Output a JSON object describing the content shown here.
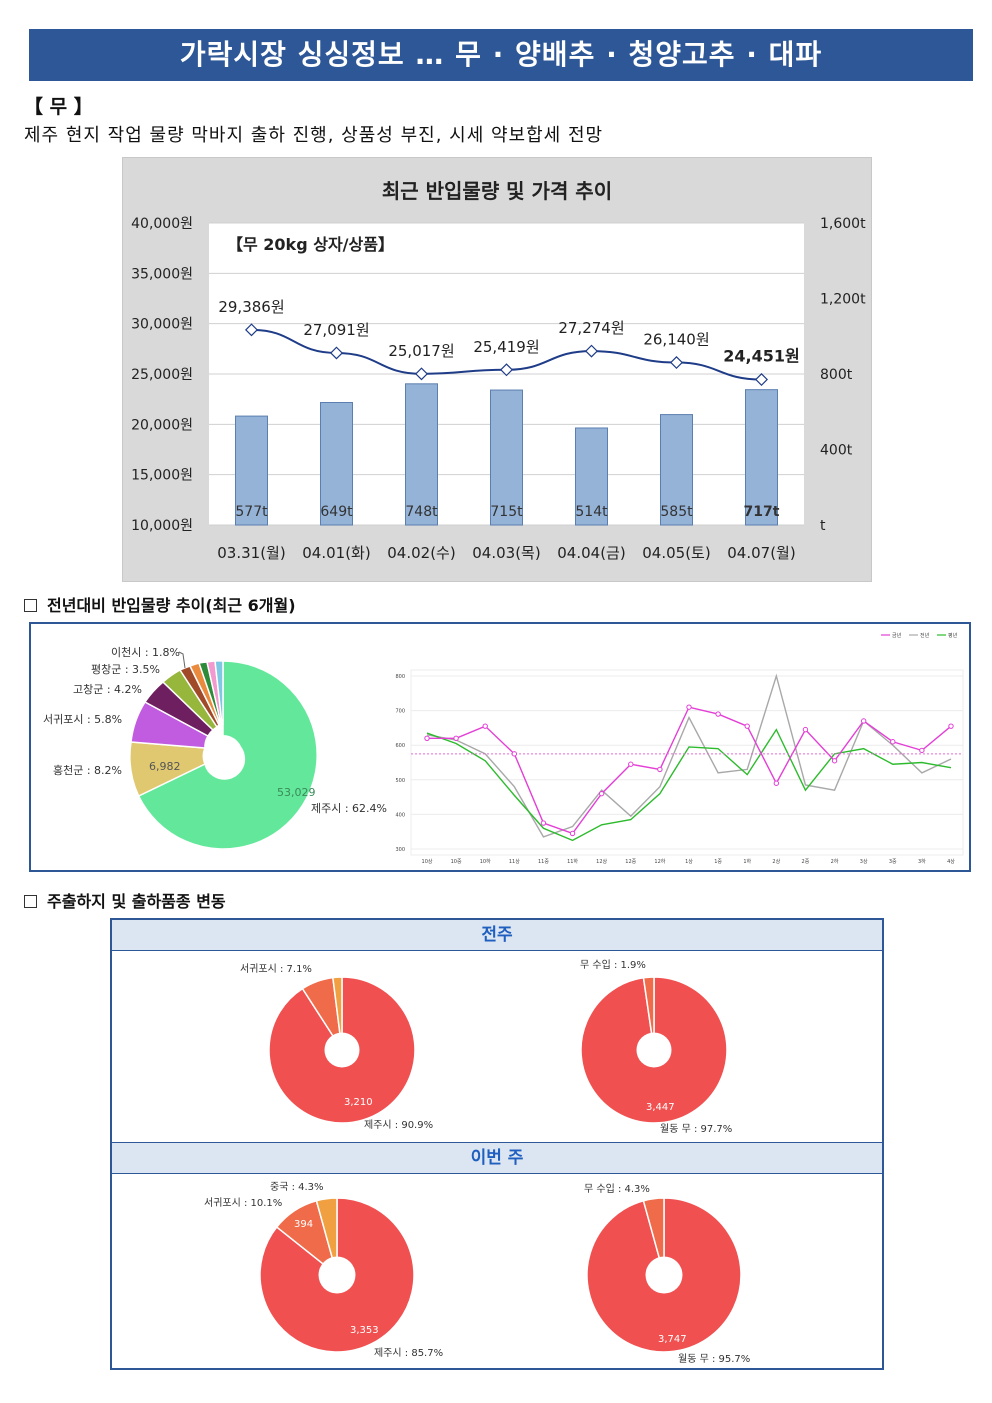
{
  "banner": {
    "title": "가락시장 싱싱정보 …  무 · 양배추 · 청양고추 · 대파"
  },
  "section": {
    "title": "【 무 】",
    "summary": "제주 현지 작업 물량 막바지 출하 진행, 상품성 부진, 시세 약보합세 전망"
  },
  "price_chart": {
    "title": "최근 반입물량 및 가격 추이",
    "legend": "【무 20kg 상자/상품】",
    "left_ticks": [
      "40,000원",
      "35,000원",
      "30,000원",
      "25,000원",
      "20,000원",
      "15,000원",
      "10,000원"
    ],
    "right_ticks": [
      "1,600t",
      "1,200t",
      "800t",
      "400t",
      "t"
    ],
    "categories": [
      "03.31(월)",
      "04.01(화)",
      "04.02(수)",
      "04.03(목)",
      "04.04(금)",
      "04.05(토)",
      "04.07(월)"
    ],
    "prices": [
      29386,
      27091,
      25017,
      25419,
      27274,
      26140,
      24451
    ],
    "price_labels": [
      "29,386원",
      "27,091원",
      "25,017원",
      "25,419원",
      "27,274원",
      "26,140원",
      "24,451원"
    ],
    "volumes": [
      577,
      649,
      748,
      715,
      514,
      585,
      717
    ],
    "volume_labels": [
      "577t",
      "649t",
      "748t",
      "715t",
      "514t",
      "585t",
      "717t"
    ],
    "bar_color": "#95b3d7",
    "line_color": "#1f3c88"
  },
  "compare": {
    "title": "전년대비 반입물량 추이(최근 6개월)",
    "pie_labels": [
      "이천시 : 1.8%",
      "평창군 : 3.5%",
      "고창군 : 4.2%",
      "서귀포시 : 5.8%",
      "홍천군 : 8.2%",
      "제주시 : 62.4%"
    ],
    "pie_values": [
      "6,982",
      "53,029"
    ],
    "line_legend": [
      "금년",
      "전년",
      "평년"
    ],
    "line_y_ticks": [
      "800",
      "700",
      "600",
      "500",
      "400",
      "300"
    ],
    "line_x_ticks": [
      "10상",
      "10중",
      "10하",
      "11상",
      "11중",
      "11하",
      "12상",
      "12중",
      "12하",
      "1상",
      "1중",
      "1하",
      "2상",
      "2중",
      "2하",
      "3상",
      "3중",
      "3하",
      "4상"
    ]
  },
  "origin": {
    "title": "주출하지 및 출하품종 변동",
    "last_week": {
      "label": "전주",
      "area_labels": [
        "서귀포시 : 7.1%",
        "제주시 : 90.9%"
      ],
      "area_value": "3,210",
      "variety_labels": [
        "무 수입 : 1.9%",
        "월동 무 : 97.7%"
      ],
      "variety_value": "3,447"
    },
    "this_week": {
      "label": "이번 주",
      "area_labels": [
        "중국 : 4.3%",
        "서귀포시 : 10.1%",
        "제주시 : 85.7%"
      ],
      "area_values": [
        "394",
        "3,353"
      ],
      "variety_labels": [
        "무 수입 : 4.3%",
        "월동 무 : 95.7%"
      ],
      "variety_value": "3,747"
    }
  }
}
